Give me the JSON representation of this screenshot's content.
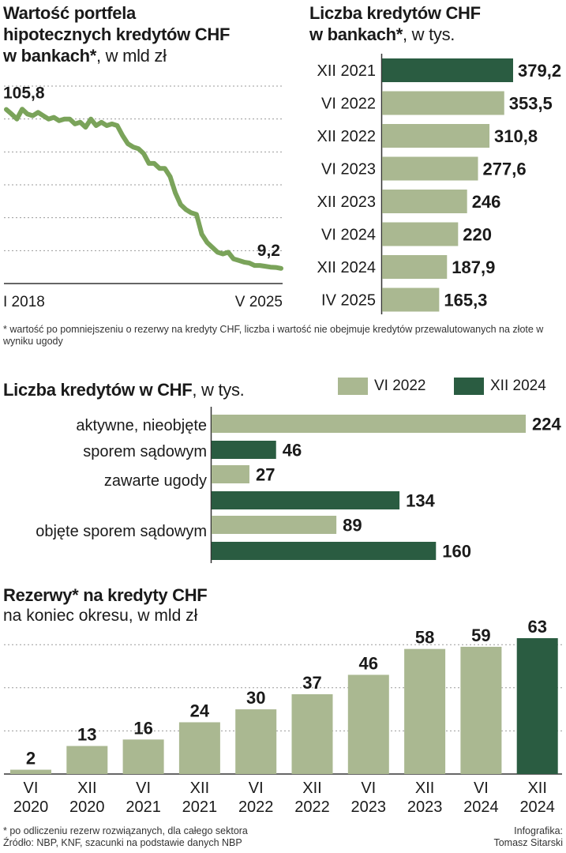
{
  "colors": {
    "dark": "#2a5c41",
    "light": "#aab891",
    "line": "#7aa35a",
    "grid": "#9a9a9a",
    "text": "#1a1a1a"
  },
  "section1": {
    "title_line1": "Wartość portfela",
    "title_line2": "hipotecznych kredytów CHF",
    "title_line3_bold": "w bankach*",
    "title_line3_unit": ", w mld zł"
  },
  "section2": {
    "title_line1": "Liczba kredytów CHF",
    "title_line2_bold": "w bankach*",
    "title_line2_unit": ", w tys."
  },
  "footnote1": "* wartość po pomniejszeniu o rezerwy na kredyty CHF, liczba i wartość nie obejmuje kredytów przewalutowanych na złote w wyniku ugody",
  "section3": {
    "title_bold": "Liczba kredytów w CHF",
    "title_unit": ", w tys.",
    "legend": [
      "VI 2022",
      "XII 2024"
    ]
  },
  "section4": {
    "title": "Rezerwy* na kredyty CHF",
    "subtitle": "na koniec okresu, w mld zł"
  },
  "footnote2": "* po odliczeniu rezerw rozwiązanych, dla całego sektora",
  "source": "Źródło: NBP, KNF, szacunki na podstawie danych NBP",
  "credit_line1": "Infografika:",
  "credit_line2": "Tomasz Sitarski",
  "chart_data": [
    {
      "type": "line",
      "title": "Wartość portfela hipotecznych kredytów CHF w bankach*, w mld zł",
      "x_labels": [
        "I 2018",
        "V 2025"
      ],
      "start_label": "105,8",
      "end_label": "9,2",
      "ylim": [
        0,
        120
      ],
      "grid": true,
      "values": [
        105.8,
        103,
        100,
        106,
        103,
        102,
        104,
        102,
        100,
        101,
        99,
        100,
        100,
        97,
        98,
        95,
        100,
        96,
        98,
        96,
        97,
        96,
        90,
        85,
        83,
        82,
        79,
        73,
        73,
        70,
        70,
        65,
        55,
        48,
        45,
        43,
        42,
        30,
        25,
        22,
        19,
        18,
        19,
        15,
        14,
        13,
        12.5,
        11,
        11,
        10.5,
        10,
        9.8,
        9.2
      ]
    },
    {
      "type": "bar",
      "orientation": "horizontal",
      "title": "Liczba kredytów CHF w bankach*, w tys.",
      "categories": [
        "XII 2021",
        "VI 2022",
        "XII 2022",
        "VI 2023",
        "XII 2023",
        "VI 2024",
        "XII 2024",
        "IV 2025"
      ],
      "values": [
        379.2,
        353.5,
        310.8,
        277.6,
        246,
        220,
        187.9,
        165.3
      ],
      "labels": [
        "379,2",
        "353,5",
        "310,8",
        "277,6",
        "246",
        "220",
        "187,9",
        "165,3"
      ],
      "highlight_index": 0
    },
    {
      "type": "bar",
      "orientation": "horizontal",
      "title": "Liczba kredytów w CHF, w tys.",
      "category_lines": [
        [
          "aktywne, nieobjęte",
          "sporem sądowym"
        ],
        [
          "zawarte ugody"
        ],
        [
          "objęte sporem sądowym"
        ]
      ],
      "series": [
        {
          "name": "VI 2022",
          "values": [
            224,
            27,
            89
          ]
        },
        {
          "name": "XII 2024",
          "values": [
            46,
            134,
            160
          ]
        }
      ],
      "legend": "top-right"
    },
    {
      "type": "bar",
      "title": "Rezerwy* na kredyty CHF",
      "subtitle": "na koniec okresu, w mld zł",
      "categories": [
        [
          "VI",
          "2020"
        ],
        [
          "XII",
          "2020"
        ],
        [
          "VI",
          "2021"
        ],
        [
          "XII",
          "2021"
        ],
        [
          "VI",
          "2022"
        ],
        [
          "XII",
          "2022"
        ],
        [
          "VI",
          "2023"
        ],
        [
          "XII",
          "2023"
        ],
        [
          "VI",
          "2024"
        ],
        [
          "XII",
          "2024"
        ]
      ],
      "values": [
        2,
        13,
        16,
        24,
        30,
        37,
        46,
        58,
        59,
        63
      ],
      "highlight_index": 9,
      "grid": true
    }
  ]
}
